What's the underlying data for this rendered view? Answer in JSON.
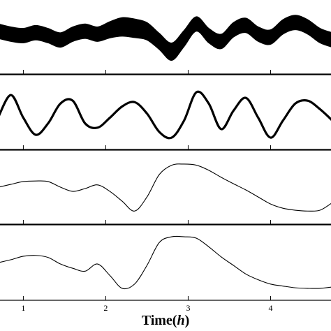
{
  "chart_data": {
    "type": "line",
    "xlabel_main": "Time(",
    "xlabel_var": "h",
    "xlabel_close": ")",
    "xlim": [
      0.7,
      4.75
    ],
    "x_ticks": [
      1,
      2,
      3,
      4
    ],
    "tick_labels": [
      "1",
      "2",
      "3",
      "4"
    ],
    "panels": [
      {
        "ylim": [
          -1,
          1
        ],
        "envelope": {
          "x": [
            0.7,
            0.85,
            1.0,
            1.15,
            1.3,
            1.45,
            1.6,
            1.75,
            1.9,
            2.05,
            2.2,
            2.35,
            2.5,
            2.65,
            2.8,
            2.95,
            3.1,
            3.25,
            3.4,
            3.55,
            3.7,
            3.85,
            4.0,
            4.15,
            4.3,
            4.45,
            4.6,
            4.75
          ],
          "center": [
            0.15,
            0.05,
            0.0,
            0.1,
            0.0,
            -0.15,
            0.05,
            0.15,
            0.05,
            0.2,
            0.3,
            0.25,
            0.15,
            -0.2,
            -0.55,
            -0.1,
            0.4,
            0.0,
            -0.2,
            0.2,
            0.35,
            0.05,
            -0.05,
            0.3,
            0.45,
            0.3,
            0.0,
            -0.15
          ],
          "halfwidth": [
            0.25,
            0.25,
            0.25,
            0.25,
            0.25,
            0.25,
            0.25,
            0.25,
            0.25,
            0.28,
            0.32,
            0.32,
            0.3,
            0.28,
            0.3,
            0.28,
            0.25,
            0.25,
            0.25,
            0.25,
            0.25,
            0.25,
            0.25,
            0.25,
            0.25,
            0.25,
            0.25,
            0.25
          ]
        }
      },
      {
        "ylim": [
          -1,
          1
        ],
        "series": [
          {
            "x": [
              0.7,
              0.85,
              1.0,
              1.15,
              1.3,
              1.45,
              1.6,
              1.75,
              1.9,
              2.05,
              2.2,
              2.35,
              2.5,
              2.65,
              2.8,
              2.95,
              3.1,
              3.25,
              3.4,
              3.55,
              3.7,
              3.85,
              4.0,
              4.15,
              4.3,
              4.45,
              4.6,
              4.75
            ],
            "y": [
              -0.15,
              0.6,
              -0.2,
              -0.8,
              -0.4,
              0.3,
              0.4,
              -0.4,
              -0.55,
              -0.2,
              0.2,
              0.35,
              -0.05,
              -0.7,
              -0.9,
              -0.3,
              0.7,
              0.3,
              -0.6,
              0.05,
              0.5,
              -0.2,
              -0.9,
              -0.3,
              0.3,
              0.4,
              0.1,
              -0.3
            ],
            "linewidth": 3.2
          }
        ]
      },
      {
        "ylim": [
          -1,
          1
        ],
        "series": [
          {
            "x": [
              0.7,
              0.85,
              1.0,
              1.15,
              1.3,
              1.45,
              1.6,
              1.75,
              1.9,
              2.05,
              2.2,
              2.35,
              2.5,
              2.65,
              2.8,
              2.95,
              3.1,
              3.25,
              3.4,
              3.55,
              3.7,
              3.85,
              4.0,
              4.15,
              4.3,
              4.45,
              4.6,
              4.75
            ],
            "y": [
              0.0,
              0.1,
              0.2,
              0.22,
              0.2,
              0.0,
              -0.15,
              -0.05,
              0.08,
              -0.15,
              -0.5,
              -0.85,
              -0.35,
              0.45,
              0.78,
              0.82,
              0.78,
              0.6,
              0.35,
              0.12,
              -0.1,
              -0.35,
              -0.6,
              -0.75,
              -0.82,
              -0.85,
              -0.82,
              -0.55
            ],
            "linewidth": 1.1
          }
        ]
      },
      {
        "ylim": [
          -1,
          1
        ],
        "series": [
          {
            "x": [
              0.7,
              0.85,
              1.0,
              1.15,
              1.3,
              1.45,
              1.6,
              1.75,
              1.9,
              2.05,
              2.2,
              2.35,
              2.5,
              2.65,
              2.8,
              2.95,
              3.1,
              3.25,
              3.4,
              3.55,
              3.7,
              3.85,
              4.0,
              4.15,
              4.3,
              4.45,
              4.6,
              4.75
            ],
            "y": [
              0.0,
              0.1,
              0.22,
              0.25,
              0.18,
              -0.05,
              -0.2,
              -0.3,
              -0.05,
              -0.45,
              -0.9,
              -0.75,
              -0.1,
              0.7,
              0.9,
              0.9,
              0.85,
              0.55,
              0.2,
              -0.1,
              -0.4,
              -0.6,
              -0.75,
              -0.82,
              -0.88,
              -0.9,
              -0.9,
              -0.85
            ],
            "linewidth": 1.1
          }
        ]
      }
    ]
  }
}
